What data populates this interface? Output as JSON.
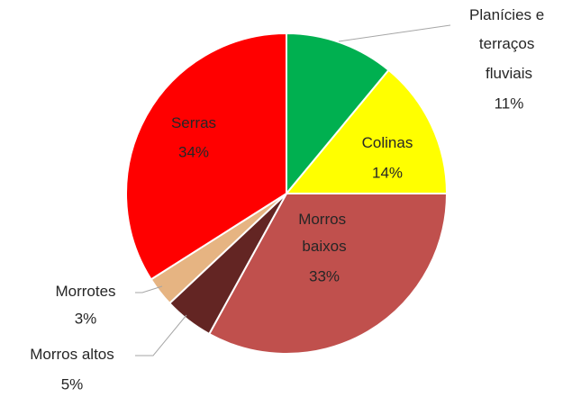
{
  "chart_data": {
    "type": "pie",
    "categories": [
      "Planícies e terraços fluviais",
      "Colinas",
      "Morros baixos",
      "Morros altos",
      "Morrotes",
      "Serras"
    ],
    "values": [
      11,
      14,
      33,
      5,
      3,
      34
    ],
    "value_labels": [
      "11%",
      "14%",
      "33%",
      "5%",
      "3%",
      "34%"
    ],
    "colors": [
      "#00b050",
      "#ffff00",
      "#c0504d",
      "#632523",
      "#e6b482",
      "#ff0000"
    ]
  }
}
